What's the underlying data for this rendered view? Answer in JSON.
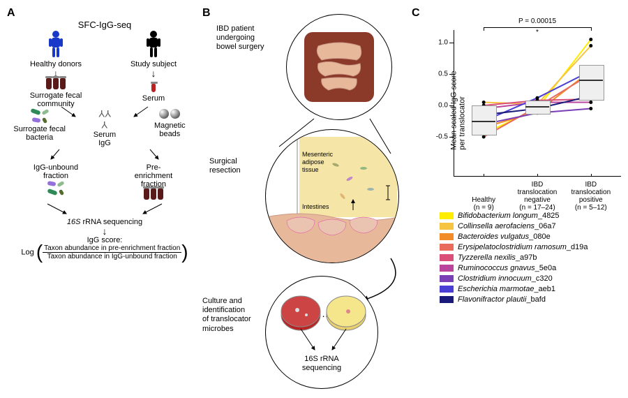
{
  "panelA": {
    "label": "A",
    "title": "SFC-IgG-seq",
    "left": {
      "person": "Healthy donors",
      "step1": "Surrogate fecal\ncommunity",
      "step2": "Surrogate fecal\nbacteria",
      "step3": "IgG-unbound\nfraction"
    },
    "right": {
      "person": "Study subject",
      "step1": "Serum",
      "step2a": "Serum\nIgG",
      "step2b": "Magnetic\nbeads",
      "step3": "Pre-\nenrichment\nfraction"
    },
    "seq": "16S rRNA sequencing",
    "score_label": "IgG score:",
    "formula_prefix": "Log",
    "formula_num": "Taxon abundance in pre-enrichment fraction",
    "formula_den": "Taxon abundance in IgG-unbound fraction"
  },
  "panelB": {
    "label": "B",
    "top_label": "IBD patient\nundergoing\nbowel surgery",
    "mid_label": "Surgical\nresection",
    "mid_tissue_top": "Mesenteric\nadipose\ntissue",
    "mid_tissue_bot": "Intestines",
    "bot_label": "Culture and\nidentification\nof translocator\nmicrobes",
    "bot_seq": "16S rRNA\nsequencing"
  },
  "panelC": {
    "label": "C",
    "pval": "P = 0.00015",
    "star": "*",
    "ylabel": "Mean scaled IgG score\nper translocator",
    "yticks": [
      -0.5,
      0.0,
      0.5,
      1.0
    ],
    "ylim": [
      -0.8,
      1.2
    ],
    "groups": [
      {
        "name": "Healthy",
        "n": "(n = 9)",
        "x": 0.18
      },
      {
        "name": "IBD\ntranslocation\nnegative",
        "n": "(n = 17–24)",
        "x": 0.5
      },
      {
        "name": "IBD\ntranslocation\npositive",
        "n": "(n = 5–12)",
        "x": 0.82
      }
    ],
    "boxes": [
      {
        "x": 0.18,
        "q1": -0.45,
        "med": -0.25,
        "q3": 0.0
      },
      {
        "x": 0.5,
        "q1": -0.12,
        "med": -0.02,
        "q3": 0.08
      },
      {
        "x": 0.82,
        "q1": 0.1,
        "med": 0.4,
        "q3": 0.65
      }
    ],
    "lines": [
      {
        "taxon": "Bifidobacterium longum_4825",
        "color": "#ffed00",
        "y": [
          -0.45,
          -0.05,
          1.05
        ]
      },
      {
        "taxon": "Collinsella aerofaciens_06a7",
        "color": "#f5c542",
        "y": [
          0.05,
          0.02,
          0.95
        ]
      },
      {
        "taxon": "Bacteroides vulgatus_080e",
        "color": "#f28c28",
        "y": [
          -0.35,
          -0.1,
          0.55
        ]
      },
      {
        "taxon": "Erysipelatoclostridium ramosum_d19a",
        "color": "#e86b5c",
        "y": [
          -0.5,
          -0.02,
          0.5
        ]
      },
      {
        "taxon": "Tyzzerella nexilis_a97b",
        "color": "#d94f7a",
        "y": [
          0.0,
          0.08,
          0.1
        ]
      },
      {
        "taxon": "Ruminococcus gnavus_5e0a",
        "color": "#b8449e",
        "y": [
          -0.05,
          0.05,
          0.05
        ]
      },
      {
        "taxon": "Clostridium innocuum_c320",
        "color": "#7a3fb5",
        "y": [
          -0.3,
          -0.12,
          -0.05
        ]
      },
      {
        "taxon": "Escherichia marmotae_aeb1",
        "color": "#4a3fd4",
        "y": [
          -0.25,
          0.12,
          0.55
        ]
      },
      {
        "taxon": "Flavonifractor plautii_bafd",
        "color": "#1a1a7a",
        "y": [
          -0.15,
          -0.05,
          0.15
        ]
      }
    ],
    "sig_span": [
      0.18,
      0.82
    ],
    "box_width": 0.14,
    "chart_colors": {
      "box_fill": "#efefef",
      "box_border": "#999999",
      "median": "#333333"
    }
  }
}
